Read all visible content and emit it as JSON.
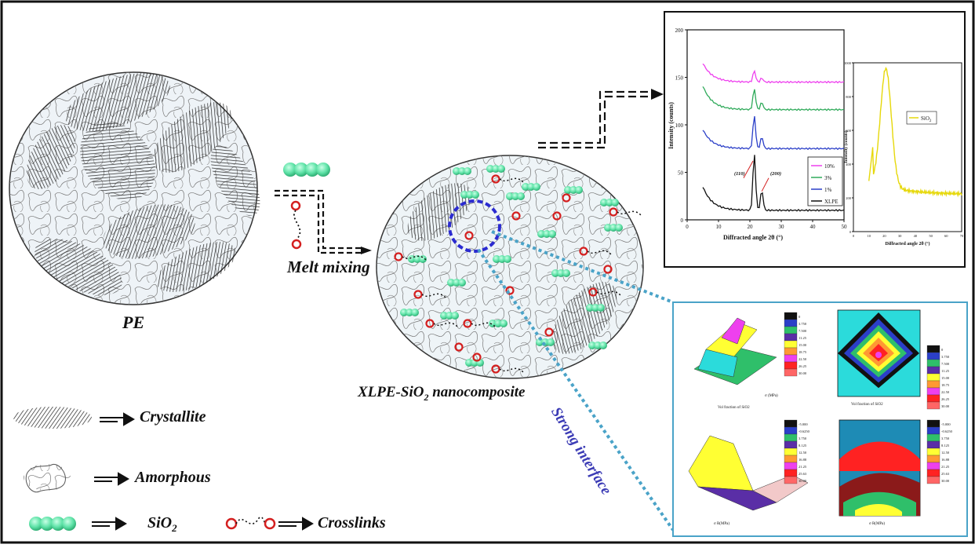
{
  "labels": {
    "pe": "PE",
    "melt_mixing": "Melt mixing",
    "nanocomposite": "XLPE-SiO",
    "nanocomposite_sub": "2",
    "nanocomposite_tail": " nanocomposite",
    "strong_interface": "Strong interface"
  },
  "legend": [
    {
      "key": "crystallite",
      "label": "Crystallite"
    },
    {
      "key": "amorphous",
      "label": "Amorphous"
    },
    {
      "key": "sio2",
      "label": "SiO",
      "sub": "2"
    },
    {
      "key": "crosslinks",
      "label": "Crosslinks"
    }
  ],
  "colors": {
    "frame": "#111111",
    "blue_connector": "#4aa3c8",
    "interface_text": "#3b3bb5",
    "crosslink": "#d42020",
    "sio2": "#5fe3a8",
    "dashed_circle": "#2b2bd0"
  },
  "xrd_chart": {
    "ylabel": "Intensity (counts)",
    "xlabel": "Diffracted angle 2θ (°)",
    "yticks": [
      "0",
      "50",
      "100",
      "150",
      "200"
    ],
    "xticks": [
      "0",
      "10",
      "20",
      "30",
      "40",
      "50"
    ],
    "peak_110": "(110)",
    "peak_200": "(200)",
    "legend": [
      {
        "name": "10%",
        "color": "#ee40ee"
      },
      {
        "name": "3%",
        "color": "#2faa5a"
      },
      {
        "name": "1%",
        "color": "#2b3fc8"
      },
      {
        "name": "XLPE",
        "color": "#111111"
      }
    ]
  },
  "sio2_chart": {
    "ylabel": "Intensity (counts)",
    "xlabel": "Diffracted angle 2θ (°)",
    "yticks": [
      "0",
      "200",
      "400",
      "600",
      "800",
      "1000"
    ],
    "xticks": [
      "0",
      "10",
      "20",
      "30",
      "40",
      "50",
      "60",
      "70"
    ],
    "legend": "SiO",
    "legend_sub": "2"
  },
  "surface_plots": {
    "tl_xlabel": "Vol fraction of SiO2",
    "tl_zlabel": "σ (MPa)",
    "tl_scale": [
      "0",
      "3.750",
      "7.500",
      "11.25",
      "15.00",
      "18.75",
      "22.50",
      "26.25",
      "30.00"
    ],
    "tr_xlabel": "Vol fraction of SiO2",
    "tr_scale": [
      "0",
      "3.750",
      "7.500",
      "11.25",
      "15.00",
      "18.75",
      "22.50",
      "26.25",
      "30.00"
    ],
    "bl_xlabel": "σ R(MPa)",
    "bl_scale": [
      "-5.000",
      "-0.6250",
      "3.750",
      "8.125",
      "12.50",
      "16.88",
      "21.25",
      "25.63",
      "30.00"
    ],
    "br_xlabel": "σ R(MPa)",
    "br_scale": [
      "-5.000",
      "-0.6250",
      "3.750",
      "8.125",
      "12.50",
      "16.88",
      "21.25",
      "25.63",
      "30.00"
    ]
  }
}
